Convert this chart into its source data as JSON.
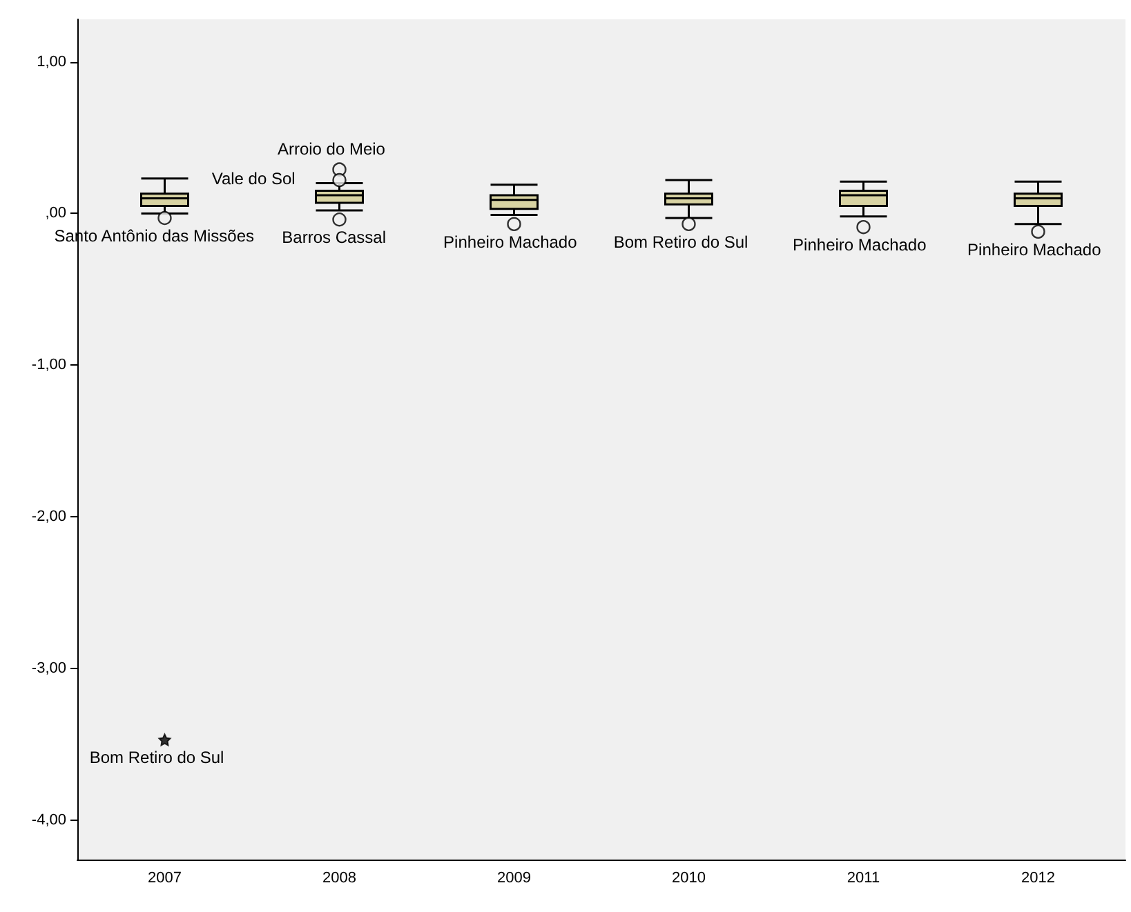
{
  "chart_data": {
    "type": "box",
    "categories": [
      "2007",
      "2008",
      "2009",
      "2010",
      "2011",
      "2012"
    ],
    "color": "#d8d3a3",
    "boxes": [
      {
        "low": 0.0,
        "q1": 0.05,
        "median": 0.1,
        "q3": 0.13,
        "high": 0.23,
        "outliers": [
          -3.47,
          -0.03
        ]
      },
      {
        "low": 0.02,
        "q1": 0.07,
        "median": 0.12,
        "q3": 0.15,
        "high": 0.2,
        "outliers": [
          0.29,
          0.22,
          -0.04
        ]
      },
      {
        "low": -0.01,
        "q1": 0.03,
        "median": 0.09,
        "q3": 0.12,
        "high": 0.19,
        "outliers": [
          -0.07
        ]
      },
      {
        "low": -0.03,
        "q1": 0.06,
        "median": 0.1,
        "q3": 0.13,
        "high": 0.22,
        "outliers": [
          -0.07
        ]
      },
      {
        "low": -0.02,
        "q1": 0.05,
        "median": 0.12,
        "q3": 0.15,
        "high": 0.21,
        "outliers": [
          -0.09
        ]
      },
      {
        "low": -0.07,
        "q1": 0.05,
        "median": 0.1,
        "q3": 0.13,
        "high": 0.21,
        "outliers": [
          -0.12
        ]
      }
    ],
    "ylim": [
      -4.26,
      1.28
    ],
    "yticks": [
      {
        "value": 1,
        "label": "1,00"
      },
      {
        "value": 0,
        "label": ",00"
      },
      {
        "value": -1,
        "label": "-1,00"
      },
      {
        "value": -2,
        "label": "-2,00"
      },
      {
        "value": -3,
        "label": "-3,00"
      },
      {
        "value": -4,
        "label": "-4,00"
      }
    ],
    "grid": false,
    "annotations": [
      "Bom Retiro do Sul",
      "Santo Antônio das Missões",
      "Arroio do Meio",
      "Vale do Sol",
      "Barros Cassal",
      "Pinheiro Machado",
      "Bom Retiro do Sul",
      "Pinheiro Machado",
      "Pinheiro Machado"
    ]
  }
}
